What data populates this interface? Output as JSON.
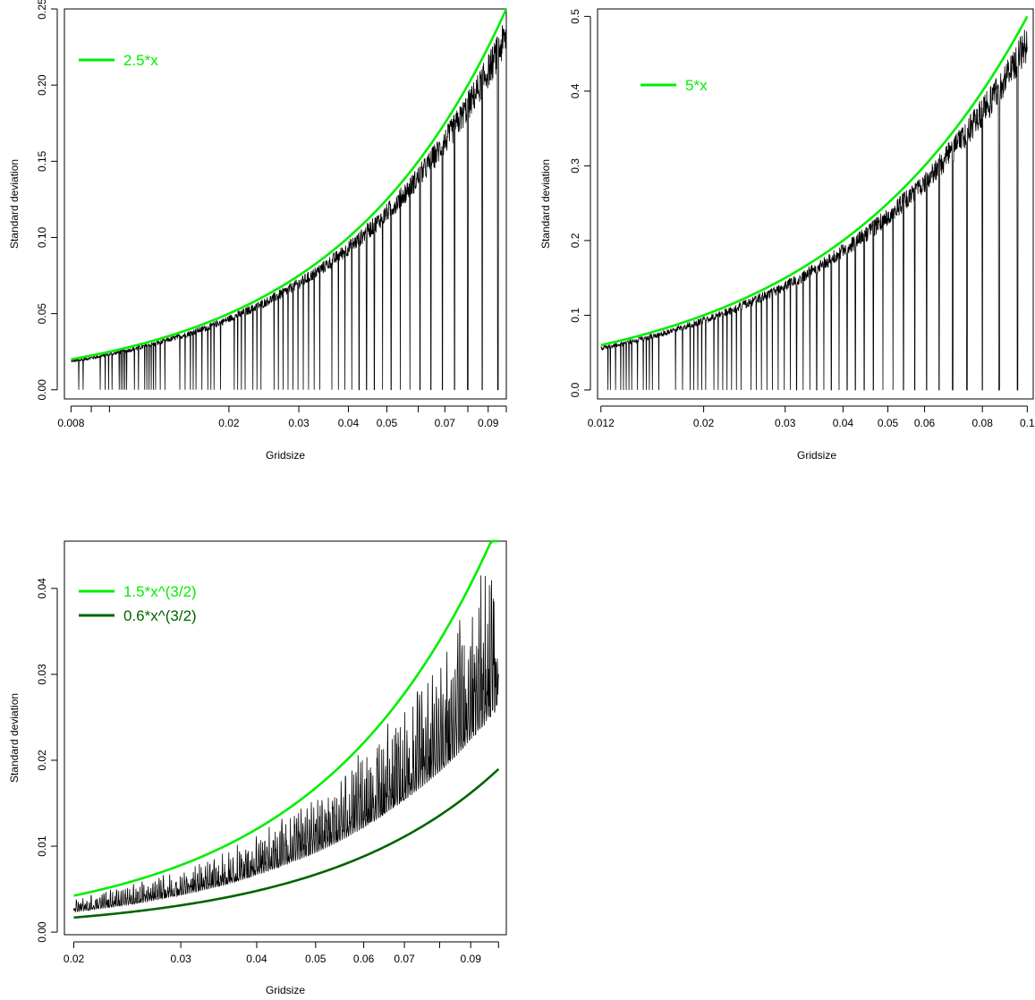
{
  "chart_data": [
    {
      "type": "line",
      "xlabel": "Gridsize",
      "ylabel": "Standard deviation",
      "x_scale": "log",
      "xlim": [
        0.0077,
        0.1
      ],
      "ylim": [
        -0.006,
        0.25
      ],
      "x_ticks": [
        0.008,
        0.009,
        0.01,
        0.02,
        0.03,
        0.04,
        0.05,
        0.06,
        0.07,
        0.08,
        0.09,
        0.1
      ],
      "x_tick_labels": [
        "0.008",
        "",
        "",
        "0.02",
        "0.03",
        "0.04",
        "0.05",
        "",
        "0.07",
        "",
        "0.09",
        ""
      ],
      "y_ticks": [
        0.0,
        0.05,
        0.1,
        0.15,
        0.2,
        0.25
      ],
      "y_tick_labels": [
        "0.00",
        "0.05",
        "0.10",
        "0.15",
        "0.20",
        "0.25"
      ],
      "grid": false,
      "legend_position": "top-left",
      "series": [
        {
          "label": "2.5*x",
          "coef": 2.5,
          "exponent": 1,
          "color": "#00ee00",
          "x_range": [
            0.008,
            0.1
          ]
        },
        {
          "label": "",
          "kind": "oscillating-data",
          "color": "#000000",
          "x_range": [
            0.008,
            0.1
          ],
          "dips_to": 0.0
        }
      ]
    },
    {
      "type": "line",
      "xlabel": "Gridsize",
      "ylabel": "Standard deviation",
      "x_scale": "log",
      "xlim": [
        0.0118,
        0.103
      ],
      "ylim": [
        -0.012,
        0.51
      ],
      "x_ticks": [
        0.012,
        0.02,
        0.03,
        0.04,
        0.05,
        0.06,
        0.08,
        0.1
      ],
      "x_tick_labels": [
        "0.012",
        "0.02",
        "0.03",
        "0.04",
        "0.05",
        "0.06",
        "0.08",
        "0.1"
      ],
      "y_ticks": [
        0.0,
        0.1,
        0.2,
        0.3,
        0.4,
        0.5
      ],
      "y_tick_labels": [
        "0.0",
        "0.1",
        "0.2",
        "0.3",
        "0.4",
        "0.5"
      ],
      "grid": false,
      "legend_position": "top-left",
      "series": [
        {
          "label": "5*x",
          "coef": 5,
          "exponent": 1,
          "color": "#00ee00",
          "x_range": [
            0.012,
            0.1
          ]
        },
        {
          "label": "",
          "kind": "oscillating-data",
          "color": "#000000",
          "x_range": [
            0.012,
            0.1
          ],
          "dips_to": 0.0
        }
      ]
    },
    {
      "type": "line",
      "xlabel": "Gridsize",
      "ylabel": "Standard deviation",
      "x_scale": "log",
      "xlim": [
        0.0193,
        0.103
      ],
      "ylim": [
        -0.0003,
        0.0455
      ],
      "x_ticks": [
        0.02,
        0.03,
        0.04,
        0.05,
        0.06,
        0.07,
        0.08,
        0.09,
        0.1
      ],
      "x_tick_labels": [
        "0.02",
        "0.03",
        "0.04",
        "0.05",
        "0.06",
        "0.07",
        "",
        "0.09",
        ""
      ],
      "y_ticks": [
        0.0,
        0.01,
        0.02,
        0.03,
        0.04
      ],
      "y_tick_labels": [
        "0.00",
        "0.01",
        "0.02",
        "0.03",
        "0.04"
      ],
      "grid": false,
      "legend_position": "top-left",
      "series": [
        {
          "label": "1.5*x^(3/2)",
          "coef": 1.5,
          "exponent": 1.5,
          "color": "#00ee00",
          "x_range": [
            0.02,
            0.1
          ]
        },
        {
          "label": "0.6*x^(3/2)",
          "coef": 0.6,
          "exponent": 1.5,
          "color": "#006400",
          "x_range": [
            0.02,
            0.1
          ]
        },
        {
          "label": "",
          "kind": "oscillating-data",
          "color": "#000000",
          "x_range": [
            0.02,
            0.1
          ],
          "band": [
            0.6,
            1.5
          ]
        }
      ]
    }
  ]
}
